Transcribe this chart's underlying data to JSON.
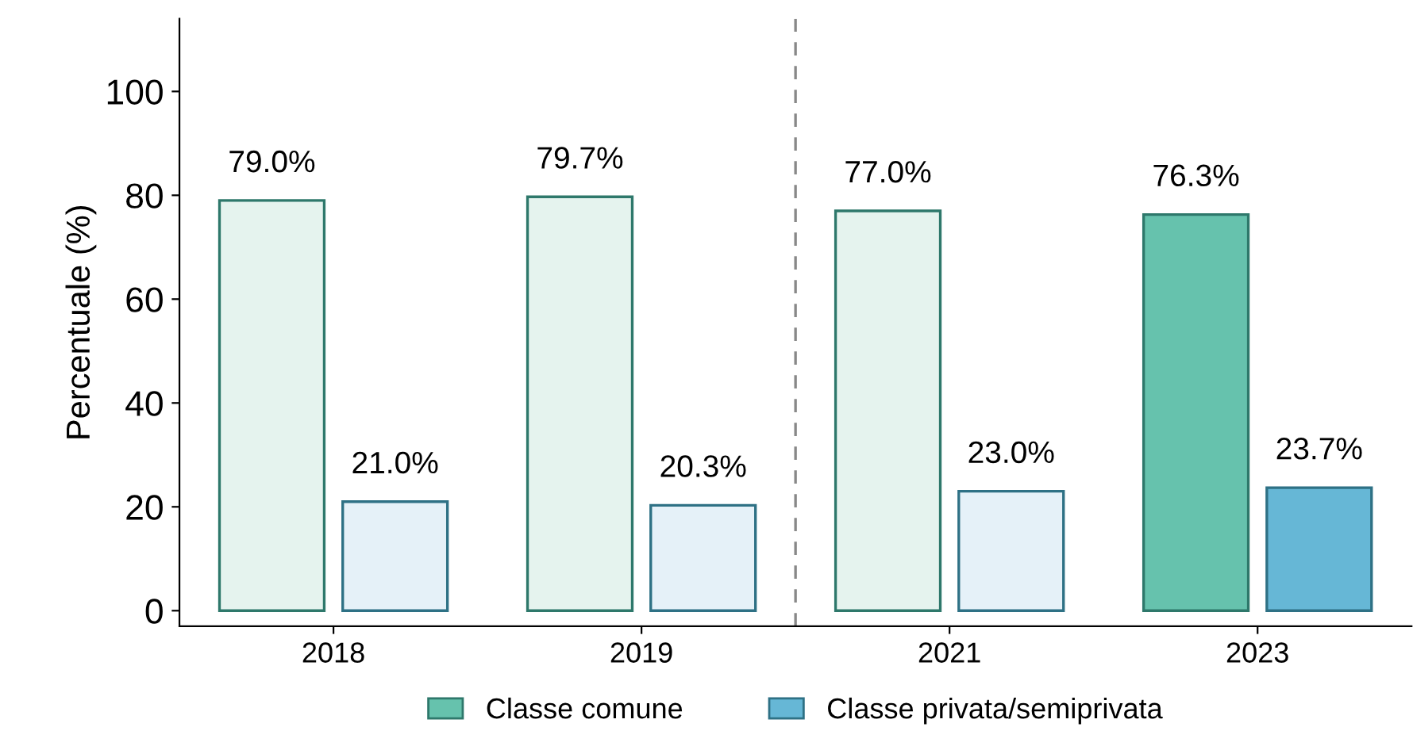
{
  "chart_data": {
    "type": "bar",
    "ylabel": "Percentuale (%)",
    "categories": [
      "2018",
      "2019",
      "2021",
      "2023"
    ],
    "series": [
      {
        "name": "Classe comune",
        "color": "#66c2ad",
        "colors": [
          "#e5f3ee",
          "#e5f3ee",
          "#e5f3ee",
          "#66c2ad"
        ],
        "values": [
          79.0,
          79.7,
          77.0,
          76.3
        ],
        "value_labels": [
          "79.0%",
          "79.7%",
          "77.0%",
          "76.3%"
        ]
      },
      {
        "name": "Classe privata/semiprivata",
        "color": "#66b7d6",
        "colors": [
          "#e5f1f8",
          "#e5f1f8",
          "#e5f1f8",
          "#66b7d6"
        ],
        "values": [
          21.0,
          20.3,
          23.0,
          23.7
        ],
        "value_labels": [
          "21.0%",
          "20.3%",
          "23.0%",
          "23.7%"
        ]
      }
    ],
    "ylim": [
      -3,
      114
    ],
    "yticks": [
      0,
      20,
      40,
      60,
      80,
      100
    ],
    "grid": false,
    "legend": "bottom"
  }
}
